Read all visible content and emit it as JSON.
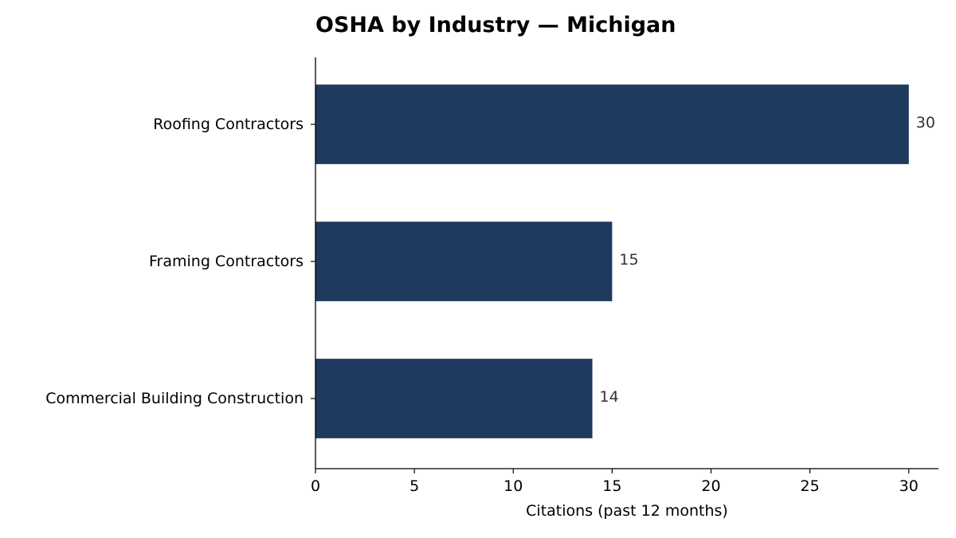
{
  "chart_data": {
    "type": "bar",
    "orientation": "horizontal",
    "title": "OSHA by Industry — Michigan",
    "xlabel": "Citations (past 12 months)",
    "ylabel": "",
    "categories": [
      "Roofing Contractors",
      "Framing Contractors",
      "Commercial Building Construction"
    ],
    "values": [
      30,
      15,
      14
    ],
    "xlim": [
      0,
      31.5
    ],
    "xticks": [
      0,
      5,
      10,
      15,
      20,
      25,
      30
    ],
    "grid": false,
    "bar_color": "#1f3a5f",
    "data_labels": true
  }
}
